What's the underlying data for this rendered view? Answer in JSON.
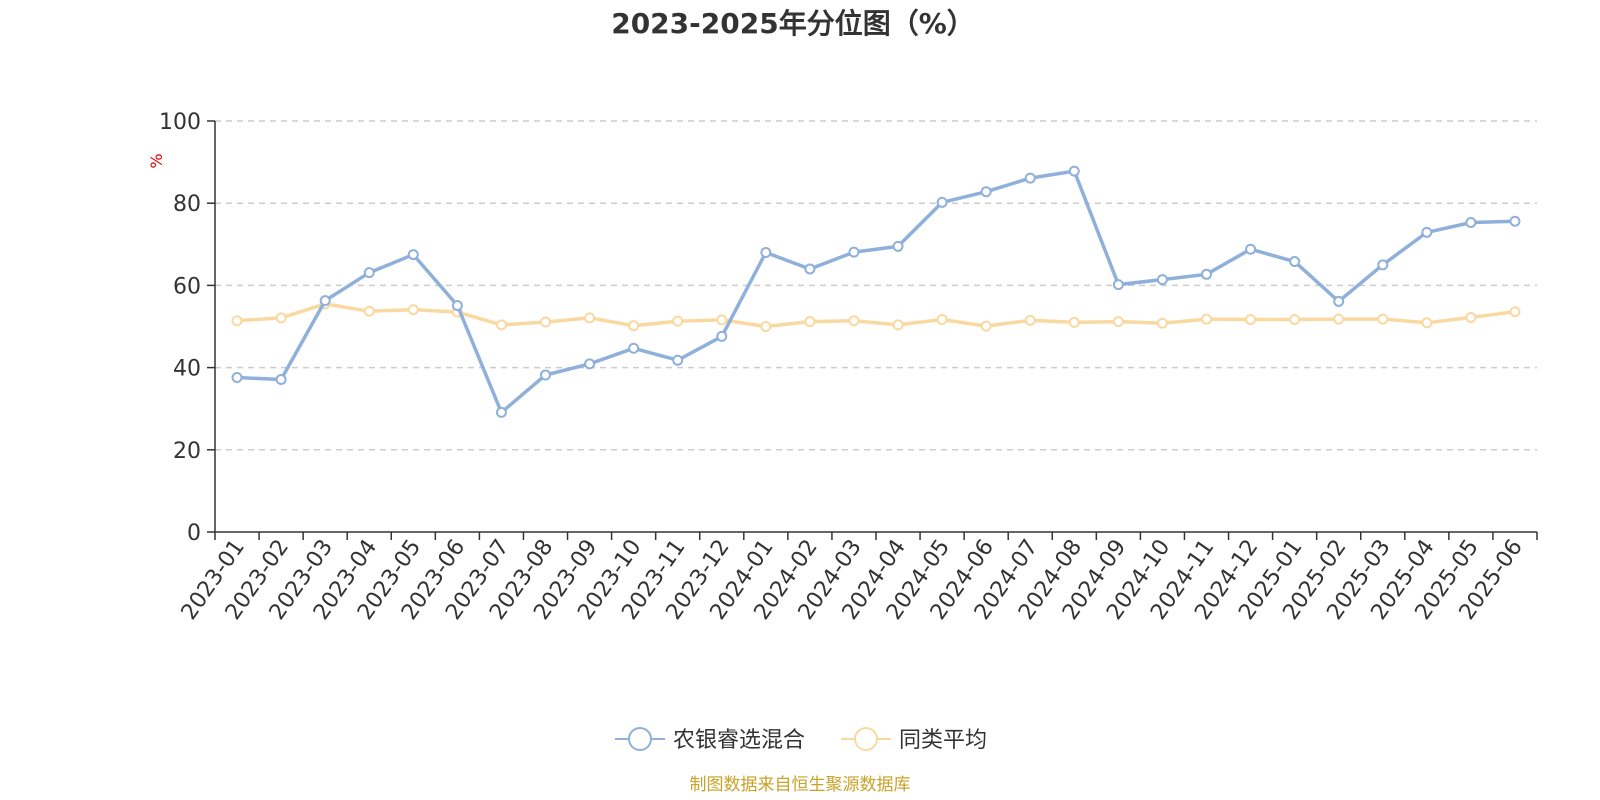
{
  "chart_data": {
    "type": "line",
    "title": "2023-2025年分位图（%）",
    "ylabel": "%",
    "ylim": [
      0,
      100
    ],
    "yticks": [
      0,
      20,
      40,
      60,
      80,
      100
    ],
    "grid": true,
    "legend_position": "bottom-center",
    "categories": [
      "2023-01",
      "2023-02",
      "2023-03",
      "2023-04",
      "2023-05",
      "2023-06",
      "2023-07",
      "2023-08",
      "2023-09",
      "2023-10",
      "2023-11",
      "2023-12",
      "2024-01",
      "2024-02",
      "2024-03",
      "2024-04",
      "2024-05",
      "2024-06",
      "2024-07",
      "2024-08",
      "2024-09",
      "2024-10",
      "2024-11",
      "2024-12",
      "2025-01",
      "2025-02",
      "2025-03",
      "2025-04",
      "2025-05",
      "2025-06"
    ],
    "series": [
      {
        "name": "农银睿选混合",
        "color": "#8FB0DA",
        "values": [
          37.6,
          37.1,
          56.3,
          63.1,
          67.5,
          55.1,
          29.1,
          38.2,
          40.9,
          44.7,
          41.8,
          47.6,
          68.0,
          64.0,
          68.1,
          69.5,
          80.2,
          82.8,
          86.1,
          87.8,
          60.2,
          61.4,
          62.7,
          68.8,
          65.8,
          56.1,
          65.0,
          72.9,
          75.3,
          75.6
        ]
      },
      {
        "name": "同类平均",
        "color": "#FAD9A1",
        "values": [
          51.4,
          52.1,
          55.5,
          53.7,
          54.1,
          53.5,
          50.4,
          51.1,
          52.1,
          50.2,
          51.3,
          51.6,
          50.0,
          51.2,
          51.4,
          50.4,
          51.7,
          50.1,
          51.5,
          51.0,
          51.2,
          50.8,
          51.8,
          51.7,
          51.7,
          51.8,
          51.8,
          50.9,
          52.2,
          53.6
        ]
      }
    ]
  },
  "source_text": "制图数据来自恒生聚源数据库",
  "colors": {
    "axis": "#333333",
    "grid": "#cccccc",
    "unit_label": "#e00000",
    "source": "#c9a227"
  }
}
